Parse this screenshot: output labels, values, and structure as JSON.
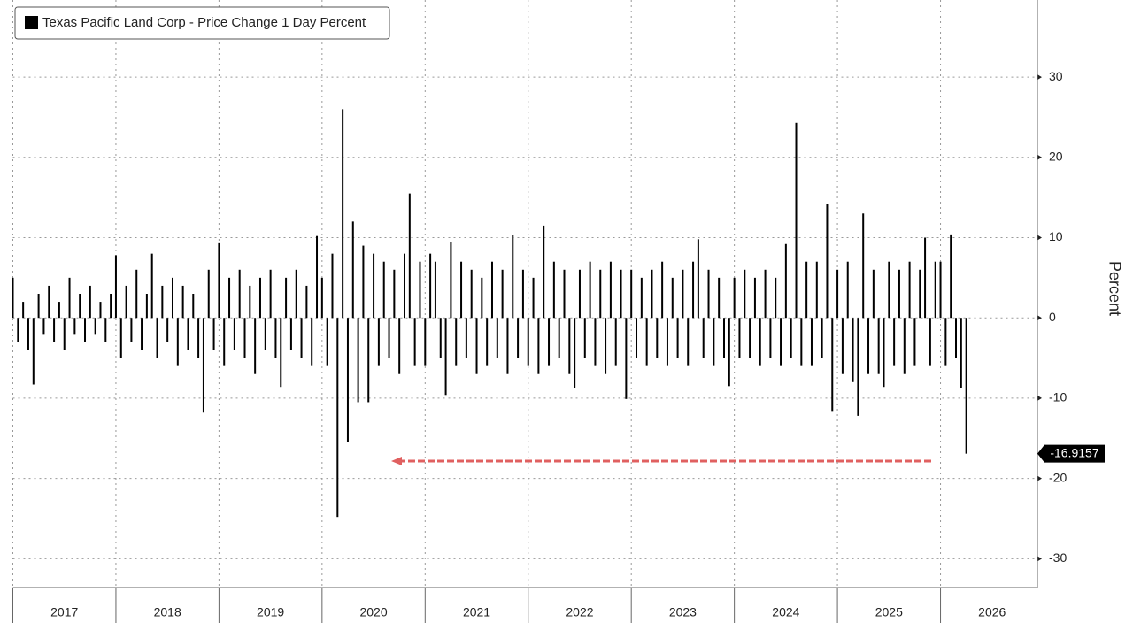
{
  "chart_data": {
    "type": "bar",
    "series": [
      {
        "name": "Texas Pacific Land Corp - Price Change 1 Day Percent",
        "color": "#000000",
        "x": [
          2017.0,
          2017.05,
          2017.1,
          2017.15,
          2017.2,
          2017.25,
          2017.3,
          2017.35,
          2017.4,
          2017.45,
          2017.5,
          2017.55,
          2017.6,
          2017.65,
          2017.7,
          2017.75,
          2017.8,
          2017.85,
          2017.9,
          2017.95,
          2018.0,
          2018.05,
          2018.1,
          2018.15,
          2018.2,
          2018.25,
          2018.3,
          2018.35,
          2018.4,
          2018.45,
          2018.5,
          2018.55,
          2018.6,
          2018.65,
          2018.7,
          2018.75,
          2018.8,
          2018.85,
          2018.9,
          2018.95,
          2019.0,
          2019.05,
          2019.1,
          2019.15,
          2019.2,
          2019.25,
          2019.3,
          2019.35,
          2019.4,
          2019.45,
          2019.5,
          2019.55,
          2019.6,
          2019.65,
          2019.7,
          2019.75,
          2019.8,
          2019.85,
          2019.9,
          2019.95,
          2020.0,
          2020.05,
          2020.1,
          2020.15,
          2020.2,
          2020.25,
          2020.3,
          2020.35,
          2020.4,
          2020.45,
          2020.5,
          2020.55,
          2020.6,
          2020.65,
          2020.7,
          2020.75,
          2020.8,
          2020.85,
          2020.9,
          2020.95,
          2021.0,
          2021.05,
          2021.1,
          2021.15,
          2021.2,
          2021.25,
          2021.3,
          2021.35,
          2021.4,
          2021.45,
          2021.5,
          2021.55,
          2021.6,
          2021.65,
          2021.7,
          2021.75,
          2021.8,
          2021.85,
          2021.9,
          2021.95,
          2022.0,
          2022.05,
          2022.1,
          2022.15,
          2022.2,
          2022.25,
          2022.3,
          2022.35,
          2022.4,
          2022.45,
          2022.5,
          2022.55,
          2022.6,
          2022.65,
          2022.7,
          2022.75,
          2022.8,
          2022.85,
          2022.9,
          2022.95,
          2023.0,
          2023.05,
          2023.1,
          2023.15,
          2023.2,
          2023.25,
          2023.3,
          2023.35,
          2023.4,
          2023.45,
          2023.5,
          2023.55,
          2023.6,
          2023.65,
          2023.7,
          2023.75,
          2023.8,
          2023.85,
          2023.9,
          2023.95,
          2024.0,
          2024.05,
          2024.1,
          2024.15,
          2024.2,
          2024.25,
          2024.3,
          2024.35,
          2024.4,
          2024.45,
          2024.5,
          2024.55,
          2024.6,
          2024.65,
          2024.7,
          2024.75,
          2024.8,
          2024.85,
          2024.9,
          2024.95,
          2025.0,
          2025.05,
          2025.1,
          2025.15,
          2025.2,
          2025.25,
          2025.3,
          2025.35,
          2025.4,
          2025.45,
          2025.5,
          2025.55,
          2025.6,
          2025.65,
          2025.7,
          2025.75,
          2025.8,
          2025.85,
          2025.9,
          2025.95,
          2026.0,
          2026.05,
          2026.1,
          2026.15,
          2026.2,
          2026.25
        ],
        "values": [
          5,
          -3,
          2,
          -4,
          -8.3,
          3,
          -2,
          4,
          -3,
          2,
          -4,
          5,
          -2,
          3,
          -3,
          4,
          -2,
          2,
          -3,
          3,
          7.8,
          -5,
          4,
          -3,
          6,
          -4,
          3,
          8,
          -5,
          4,
          -3,
          5,
          -6,
          4,
          -4,
          3,
          -5,
          -11.8,
          6,
          -4,
          9.3,
          -6,
          5,
          -4,
          6,
          -5,
          4,
          -7,
          5,
          -4,
          6,
          -5,
          -8.6,
          5,
          -4,
          6,
          -5,
          4,
          -6,
          10.2,
          5,
          -6,
          8,
          -24.8,
          26,
          -15.5,
          12,
          -10.5,
          9,
          -10.5,
          8,
          -6,
          7,
          -5,
          6,
          -7,
          8,
          15.5,
          -6,
          7,
          -6,
          8,
          7,
          -5,
          -9.6,
          9.5,
          -6,
          7,
          -5,
          6,
          -7,
          5,
          -6,
          7,
          -5,
          6,
          -7,
          10.3,
          -5,
          6,
          -6,
          5,
          -7,
          11.5,
          -6,
          7,
          -5,
          6,
          -7,
          -8.7,
          6,
          -5,
          7,
          -6,
          6,
          -7,
          7,
          -6,
          6,
          -10.1,
          6,
          -5,
          5,
          -6,
          6,
          -5,
          7,
          -6,
          5,
          -5,
          6,
          -6,
          7,
          9.8,
          -5,
          6,
          -6,
          5,
          -5,
          -8.5,
          5,
          -5,
          6,
          -5,
          5,
          -6,
          6,
          -5,
          5,
          -6,
          9.2,
          -5,
          24.3,
          -6,
          7,
          -6,
          7,
          -5,
          14.2,
          -11.7,
          6,
          -7,
          7,
          -8,
          -12.2,
          13,
          -7,
          6,
          -7,
          -8.6,
          7,
          -6,
          6,
          -7,
          7,
          -6,
          6,
          10,
          -6,
          7,
          7,
          -6,
          10.4,
          -5,
          -8.7,
          -16.9157
        ]
      }
    ],
    "xlim": [
      2017,
      2026.94
    ],
    "xticks": [
      {
        "value": 2017.5,
        "label": "2017"
      },
      {
        "value": 2018.5,
        "label": "2018"
      },
      {
        "value": 2019.5,
        "label": "2019"
      },
      {
        "value": 2020.5,
        "label": "2020"
      },
      {
        "value": 2021.5,
        "label": "2021"
      },
      {
        "value": 2022.5,
        "label": "2022"
      },
      {
        "value": 2023.5,
        "label": "2023"
      },
      {
        "value": 2024.5,
        "label": "2024"
      },
      {
        "value": 2025.5,
        "label": "2025"
      },
      {
        "value": 2026.5,
        "label": "2026"
      }
    ],
    "ylim": [
      -33.6,
      39.6
    ],
    "yticks": [
      -30,
      -20,
      -10,
      0,
      10,
      20,
      30
    ],
    "ylabel": "Percent",
    "grid": true,
    "legend": "top-left"
  }
}
